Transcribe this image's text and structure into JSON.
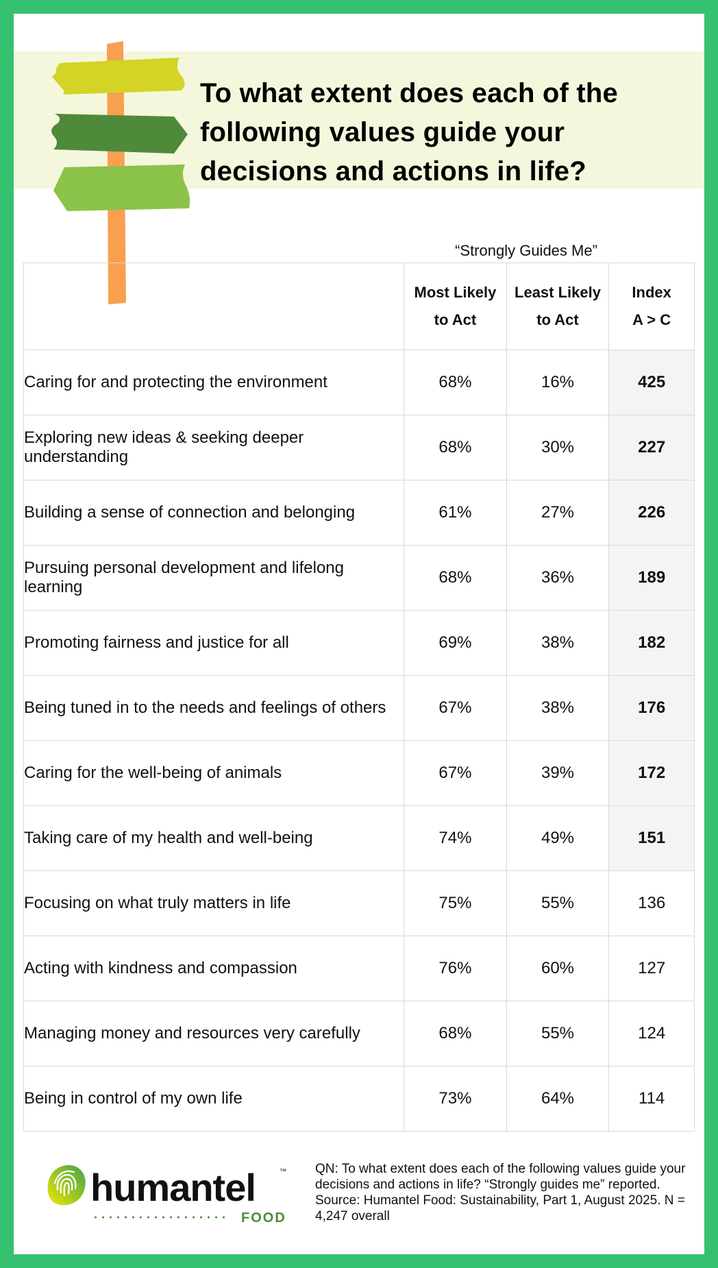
{
  "header": {
    "title": "To what extent does each of the following values guide your decisions and actions in life?"
  },
  "chart_data": {
    "type": "table",
    "group_header": "“Strongly Guides Me”",
    "columns": [
      {
        "label": "Most Likely to Act",
        "line1": "Most Likely",
        "line2": "to Act"
      },
      {
        "label": "Least Likely to Act",
        "line1": "Least Likely",
        "line2": "to Act"
      },
      {
        "label": "Index A > C",
        "line1": "Index",
        "line2": "A > C"
      }
    ],
    "rows": [
      {
        "label": "Caring for and protecting the environment",
        "most": "68%",
        "least": "16%",
        "index": "425",
        "highlight": true
      },
      {
        "label": "Exploring new ideas & seeking deeper understanding",
        "most": "68%",
        "least": "30%",
        "index": "227",
        "highlight": true
      },
      {
        "label": "Building a sense of connection and belonging",
        "most": "61%",
        "least": "27%",
        "index": "226",
        "highlight": true
      },
      {
        "label": "Pursuing personal development and lifelong learning",
        "most": "68%",
        "least": "36%",
        "index": "189",
        "highlight": true
      },
      {
        "label": "Promoting fairness and justice for all",
        "most": "69%",
        "least": "38%",
        "index": "182",
        "highlight": true
      },
      {
        "label": "Being tuned in to the needs and feelings of others",
        "most": "67%",
        "least": "38%",
        "index": "176",
        "highlight": true
      },
      {
        "label": "Caring for the well-being of animals",
        "most": "67%",
        "least": "39%",
        "index": "172",
        "highlight": true
      },
      {
        "label": "Taking care of my health and well-being",
        "most": "74%",
        "least": "49%",
        "index": "151",
        "highlight": true
      },
      {
        "label": "Focusing on what truly matters in life",
        "most": "75%",
        "least": "55%",
        "index": "136",
        "highlight": false
      },
      {
        "label": "Acting with kindness and compassion",
        "most": "76%",
        "least": "60%",
        "index": "127",
        "highlight": false
      },
      {
        "label": "Managing money and resources very carefully",
        "most": "68%",
        "least": "55%",
        "index": "124",
        "highlight": false
      },
      {
        "label": "Being in control of my own life",
        "most": "73%",
        "least": "64%",
        "index": "114",
        "highlight": false
      }
    ]
  },
  "logo": {
    "word": "humantel",
    "tm": "™",
    "sub": "FOOD"
  },
  "footnote": "QN: To what extent does each of the following values guide your decisions and actions in life? “Strongly guides me” reported. Source: Humantel Food: Sustainability, Part 1, August 2025. N = 4,247 overall",
  "colors": {
    "frame": "#36c171",
    "banner": "#f5f7dc",
    "sign_top": "#d3d426",
    "sign_mid": "#4e8a3a",
    "sign_bottom": "#8bc34a",
    "post": "#f8a050",
    "index_highlight": "#f4f4f4"
  },
  "icons": [
    "signpost-icon",
    "fingerprint-logo-icon"
  ]
}
